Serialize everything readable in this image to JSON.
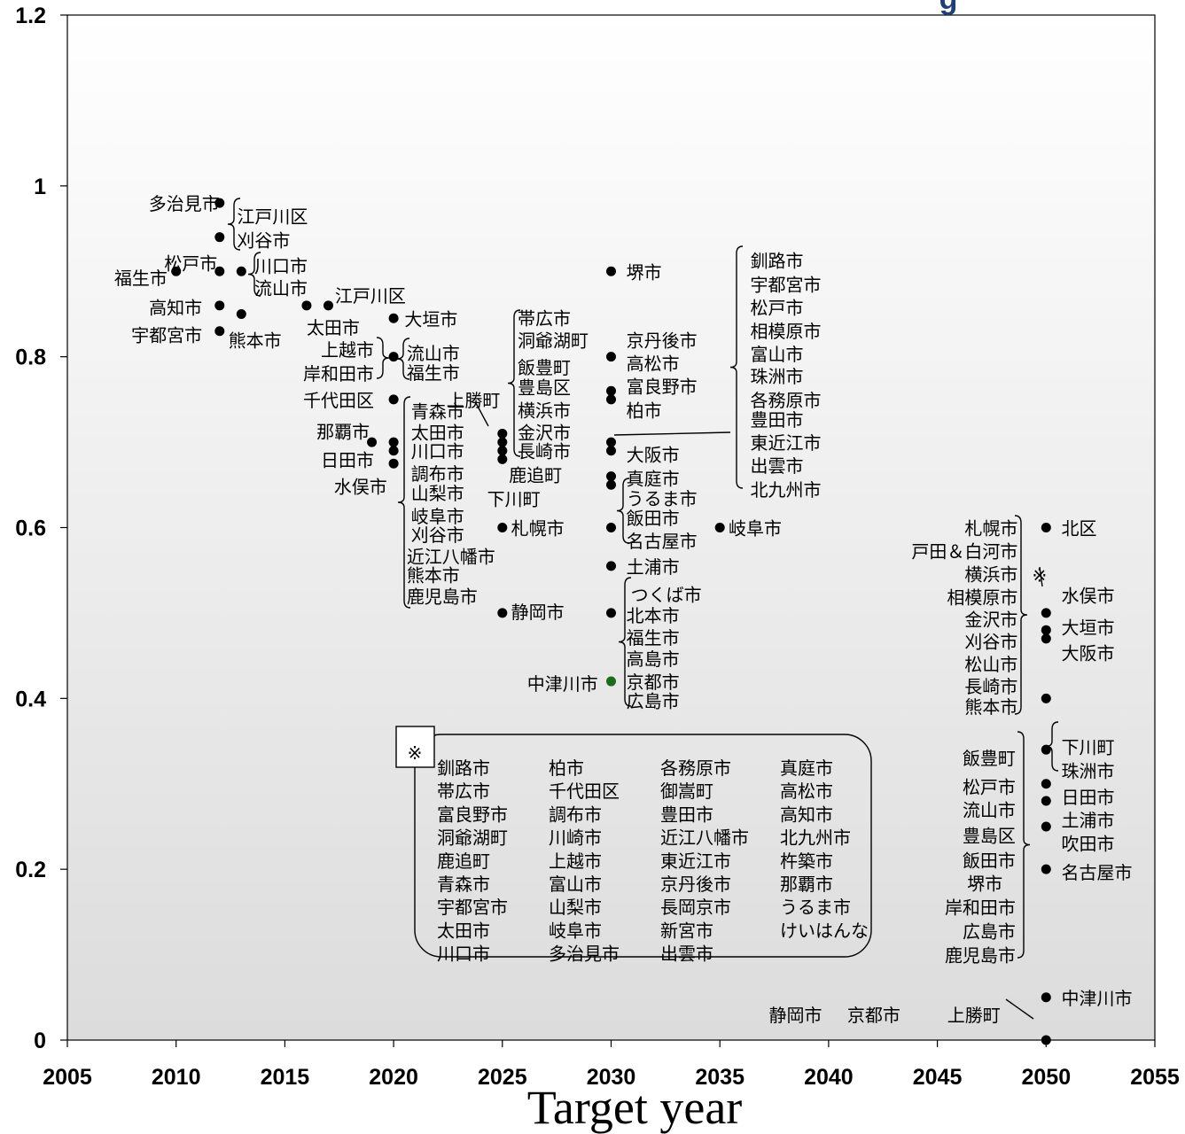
{
  "chart_data": {
    "type": "scatter",
    "title": "g",
    "xlabel": "Target year",
    "ylabel": "",
    "xlim": [
      2005,
      2055
    ],
    "ylim": [
      0,
      1.2
    ],
    "x_ticks": [
      "2005",
      "2010",
      "2015",
      "2020",
      "2025",
      "2030",
      "2035",
      "2040",
      "2045",
      "2050",
      "2055"
    ],
    "y_ticks": [
      "0",
      "0.2",
      "0.4",
      "0.6",
      "0.8",
      "1",
      "1.2"
    ],
    "grid": false,
    "colors": {
      "point": "#000000",
      "highlight_point": "#1a6b1a",
      "background_top": "#ffffff",
      "background_bottom": "#dcdcdc"
    },
    "points": [
      {
        "x": 2012,
        "y": 0.98
      },
      {
        "x": 2012,
        "y": 0.94
      },
      {
        "x": 2010,
        "y": 0.9
      },
      {
        "x": 2012,
        "y": 0.9
      },
      {
        "x": 2013,
        "y": 0.9
      },
      {
        "x": 2012,
        "y": 0.86
      },
      {
        "x": 2013,
        "y": 0.85
      },
      {
        "x": 2012,
        "y": 0.83
      },
      {
        "x": 2016,
        "y": 0.86
      },
      {
        "x": 2017,
        "y": 0.86
      },
      {
        "x": 2020,
        "y": 0.845
      },
      {
        "x": 2020,
        "y": 0.8
      },
      {
        "x": 2020,
        "y": 0.75
      },
      {
        "x": 2019,
        "y": 0.7
      },
      {
        "x": 2020,
        "y": 0.7
      },
      {
        "x": 2020,
        "y": 0.69
      },
      {
        "x": 2020,
        "y": 0.675
      },
      {
        "x": 2025,
        "y": 0.71
      },
      {
        "x": 2025,
        "y": 0.7
      },
      {
        "x": 2025,
        "y": 0.69
      },
      {
        "x": 2025,
        "y": 0.68
      },
      {
        "x": 2025,
        "y": 0.6
      },
      {
        "x": 2025,
        "y": 0.5
      },
      {
        "x": 2030,
        "y": 0.9
      },
      {
        "x": 2030,
        "y": 0.8
      },
      {
        "x": 2030,
        "y": 0.76
      },
      {
        "x": 2030,
        "y": 0.75
      },
      {
        "x": 2030,
        "y": 0.7
      },
      {
        "x": 2030,
        "y": 0.69
      },
      {
        "x": 2030,
        "y": 0.66
      },
      {
        "x": 2030,
        "y": 0.65
      },
      {
        "x": 2030,
        "y": 0.6
      },
      {
        "x": 2030,
        "y": 0.555
      },
      {
        "x": 2030,
        "y": 0.5
      },
      {
        "x": 2030,
        "y": 0.42,
        "highlight": true
      },
      {
        "x": 2035,
        "y": 0.6
      },
      {
        "x": 2050,
        "y": 0.6
      },
      {
        "x": 2050,
        "y": 0.5
      },
      {
        "x": 2050,
        "y": 0.48
      },
      {
        "x": 2050,
        "y": 0.47
      },
      {
        "x": 2050,
        "y": 0.4
      },
      {
        "x": 2050,
        "y": 0.34
      },
      {
        "x": 2050,
        "y": 0.3
      },
      {
        "x": 2050,
        "y": 0.28
      },
      {
        "x": 2050,
        "y": 0.25
      },
      {
        "x": 2050,
        "y": 0.2
      },
      {
        "x": 2050,
        "y": 0.05
      },
      {
        "x": 2050,
        "y": 0.0
      }
    ],
    "annotations": [
      {
        "text": "多治見市",
        "x": 2012,
        "y": 0.98,
        "anchor": "end"
      },
      {
        "text": "江戸川区",
        "x": 2012.8,
        "y": 0.965,
        "anchor": "start"
      },
      {
        "text": "刈谷市",
        "x": 2012.8,
        "y": 0.937,
        "anchor": "start"
      },
      {
        "text": "松戸市",
        "x": 2011.9,
        "y": 0.91,
        "anchor": "end"
      },
      {
        "text": "福生市",
        "x": 2009.6,
        "y": 0.893,
        "anchor": "end"
      },
      {
        "text": "川口市",
        "x": 2013.6,
        "y": 0.907,
        "anchor": "start"
      },
      {
        "text": "流山市",
        "x": 2013.6,
        "y": 0.881,
        "anchor": "start"
      },
      {
        "text": "高知市",
        "x": 2011.2,
        "y": 0.858,
        "anchor": "end"
      },
      {
        "text": "江戸川区",
        "x": 2017.3,
        "y": 0.872,
        "anchor": "start"
      },
      {
        "text": "宇都宮市",
        "x": 2011.2,
        "y": 0.826,
        "anchor": "end"
      },
      {
        "text": "熊本市",
        "x": 2012.4,
        "y": 0.82,
        "anchor": "start"
      },
      {
        "text": "太田市",
        "x": 2016.0,
        "y": 0.835,
        "anchor": "start"
      },
      {
        "text": "大垣市",
        "x": 2020.5,
        "y": 0.845,
        "anchor": "start"
      },
      {
        "text": "上越市",
        "x": 2019.1,
        "y": 0.809,
        "anchor": "end"
      },
      {
        "text": "岸和田市",
        "x": 2019.1,
        "y": 0.781,
        "anchor": "end"
      },
      {
        "text": "流山市",
        "x": 2020.6,
        "y": 0.805,
        "anchor": "start"
      },
      {
        "text": "福生市",
        "x": 2020.6,
        "y": 0.782,
        "anchor": "start"
      },
      {
        "text": "千代田区",
        "x": 2019.1,
        "y": 0.75,
        "anchor": "end"
      },
      {
        "text": "上勝町",
        "x": 2024.9,
        "y": 0.75,
        "anchor": "end"
      },
      {
        "text": "那覇市",
        "x": 2018.9,
        "y": 0.713,
        "anchor": "end"
      },
      {
        "text": "日田市",
        "x": 2019.1,
        "y": 0.68,
        "anchor": "end"
      },
      {
        "text": "水俣市",
        "x": 2019.7,
        "y": 0.649,
        "anchor": "end"
      },
      {
        "text": "青森市",
        "x": 2020.8,
        "y": 0.737,
        "anchor": "start"
      },
      {
        "text": "太田市",
        "x": 2020.8,
        "y": 0.712,
        "anchor": "start"
      },
      {
        "text": "川口市",
        "x": 2020.8,
        "y": 0.69,
        "anchor": "start"
      },
      {
        "text": "調布市",
        "x": 2020.8,
        "y": 0.664,
        "anchor": "start"
      },
      {
        "text": "山梨市",
        "x": 2020.8,
        "y": 0.641,
        "anchor": "start"
      },
      {
        "text": "岐阜市",
        "x": 2020.8,
        "y": 0.614,
        "anchor": "start"
      },
      {
        "text": "刈谷市",
        "x": 2020.8,
        "y": 0.592,
        "anchor": "start"
      },
      {
        "text": "近江八幡市",
        "x": 2020.6,
        "y": 0.567,
        "anchor": "start"
      },
      {
        "text": "熊本市",
        "x": 2020.6,
        "y": 0.545,
        "anchor": "start"
      },
      {
        "text": "鹿児島市",
        "x": 2020.6,
        "y": 0.52,
        "anchor": "start"
      },
      {
        "text": "帯広市",
        "x": 2025.7,
        "y": 0.846,
        "anchor": "start"
      },
      {
        "text": "洞爺湖町",
        "x": 2025.7,
        "y": 0.82,
        "anchor": "start"
      },
      {
        "text": "飯豊町",
        "x": 2025.7,
        "y": 0.788,
        "anchor": "start"
      },
      {
        "text": "豊島区",
        "x": 2025.7,
        "y": 0.765,
        "anchor": "start"
      },
      {
        "text": "横浜市",
        "x": 2025.7,
        "y": 0.738,
        "anchor": "start"
      },
      {
        "text": "金沢市",
        "x": 2025.7,
        "y": 0.712,
        "anchor": "start"
      },
      {
        "text": "長崎市",
        "x": 2025.7,
        "y": 0.69,
        "anchor": "start"
      },
      {
        "text": "鹿追町",
        "x": 2025.3,
        "y": 0.662,
        "anchor": "start"
      },
      {
        "text": "下川町",
        "x": 2024.3,
        "y": 0.634,
        "anchor": "start"
      },
      {
        "text": "札幌市",
        "x": 2025.4,
        "y": 0.6,
        "anchor": "start"
      },
      {
        "text": "静岡市",
        "x": 2025.4,
        "y": 0.502,
        "anchor": "start"
      },
      {
        "text": "堺市",
        "x": 2030.7,
        "y": 0.9,
        "anchor": "start"
      },
      {
        "text": "京丹後市",
        "x": 2030.7,
        "y": 0.82,
        "anchor": "start"
      },
      {
        "text": "高松市",
        "x": 2030.7,
        "y": 0.793,
        "anchor": "start"
      },
      {
        "text": "富良野市",
        "x": 2030.7,
        "y": 0.766,
        "anchor": "start"
      },
      {
        "text": "柏市",
        "x": 2030.7,
        "y": 0.738,
        "anchor": "start"
      },
      {
        "text": "大阪市",
        "x": 2030.7,
        "y": 0.686,
        "anchor": "start"
      },
      {
        "text": "真庭市",
        "x": 2030.7,
        "y": 0.658,
        "anchor": "start"
      },
      {
        "text": "うるま市",
        "x": 2030.7,
        "y": 0.635,
        "anchor": "start"
      },
      {
        "text": "飯田市",
        "x": 2030.7,
        "y": 0.612,
        "anchor": "start"
      },
      {
        "text": "名古屋市",
        "x": 2030.7,
        "y": 0.585,
        "anchor": "start"
      },
      {
        "text": "岐阜市",
        "x": 2035.4,
        "y": 0.6,
        "anchor": "start"
      },
      {
        "text": "土浦市",
        "x": 2030.7,
        "y": 0.555,
        "anchor": "start"
      },
      {
        "text": "つくば市",
        "x": 2030.9,
        "y": 0.522,
        "anchor": "start"
      },
      {
        "text": "北本市",
        "x": 2030.7,
        "y": 0.498,
        "anchor": "start"
      },
      {
        "text": "福生市",
        "x": 2030.7,
        "y": 0.472,
        "anchor": "start"
      },
      {
        "text": "高島市",
        "x": 2030.7,
        "y": 0.447,
        "anchor": "start"
      },
      {
        "text": "京都市",
        "x": 2030.7,
        "y": 0.42,
        "anchor": "start"
      },
      {
        "text": "広島市",
        "x": 2030.7,
        "y": 0.398,
        "anchor": "start"
      },
      {
        "text": "中津川市",
        "x": 2029.4,
        "y": 0.418,
        "anchor": "end"
      },
      {
        "text": "釧路市",
        "x": 2036.4,
        "y": 0.913,
        "anchor": "start"
      },
      {
        "text": "宇都宮市",
        "x": 2036.4,
        "y": 0.885,
        "anchor": "start"
      },
      {
        "text": "松戸市",
        "x": 2036.4,
        "y": 0.858,
        "anchor": "start"
      },
      {
        "text": "相模原市",
        "x": 2036.4,
        "y": 0.831,
        "anchor": "start"
      },
      {
        "text": "富山市",
        "x": 2036.4,
        "y": 0.804,
        "anchor": "start"
      },
      {
        "text": "珠洲市",
        "x": 2036.4,
        "y": 0.778,
        "anchor": "start"
      },
      {
        "text": "各務原市",
        "x": 2036.4,
        "y": 0.75,
        "anchor": "start"
      },
      {
        "text": "豊田市",
        "x": 2036.4,
        "y": 0.727,
        "anchor": "start"
      },
      {
        "text": "東近江市",
        "x": 2036.4,
        "y": 0.7,
        "anchor": "start"
      },
      {
        "text": "出雲市",
        "x": 2036.4,
        "y": 0.673,
        "anchor": "start"
      },
      {
        "text": "北九州市",
        "x": 2036.4,
        "y": 0.645,
        "anchor": "start"
      },
      {
        "text": "札幌市",
        "x": 2048.7,
        "y": 0.6,
        "anchor": "end"
      },
      {
        "text": "戸田＆白河市",
        "x": 2048.7,
        "y": 0.573,
        "anchor": "end"
      },
      {
        "text": "横浜市",
        "x": 2048.7,
        "y": 0.546,
        "anchor": "end"
      },
      {
        "text": "相模原市",
        "x": 2048.7,
        "y": 0.519,
        "anchor": "end"
      },
      {
        "text": "金沢市",
        "x": 2048.7,
        "y": 0.493,
        "anchor": "end"
      },
      {
        "text": "刈谷市",
        "x": 2048.7,
        "y": 0.467,
        "anchor": "end"
      },
      {
        "text": "松山市",
        "x": 2048.7,
        "y": 0.441,
        "anchor": "end"
      },
      {
        "text": "長崎市",
        "x": 2048.7,
        "y": 0.415,
        "anchor": "end"
      },
      {
        "text": "熊本市",
        "x": 2048.7,
        "y": 0.391,
        "anchor": "end"
      },
      {
        "text": "北区",
        "x": 2050.7,
        "y": 0.6,
        "anchor": "start"
      },
      {
        "text": "※",
        "x": 2049.7,
        "y": 0.545,
        "anchor": "middle"
      },
      {
        "text": "水俣市",
        "x": 2050.7,
        "y": 0.521,
        "anchor": "start"
      },
      {
        "text": "大垣市",
        "x": 2050.7,
        "y": 0.484,
        "anchor": "start"
      },
      {
        "text": "大阪市",
        "x": 2050.7,
        "y": 0.454,
        "anchor": "start"
      },
      {
        "text": "飯豊町",
        "x": 2048.6,
        "y": 0.331,
        "anchor": "end"
      },
      {
        "text": "松戸市",
        "x": 2048.6,
        "y": 0.297,
        "anchor": "end"
      },
      {
        "text": "流山市",
        "x": 2048.6,
        "y": 0.27,
        "anchor": "end"
      },
      {
        "text": "豊島区",
        "x": 2048.6,
        "y": 0.24,
        "anchor": "end"
      },
      {
        "text": "飯田市",
        "x": 2048.6,
        "y": 0.211,
        "anchor": "end"
      },
      {
        "text": "堺市",
        "x": 2048.0,
        "y": 0.184,
        "anchor": "end"
      },
      {
        "text": "岸和田市",
        "x": 2048.6,
        "y": 0.156,
        "anchor": "end"
      },
      {
        "text": "広島市",
        "x": 2048.6,
        "y": 0.128,
        "anchor": "end"
      },
      {
        "text": "鹿児島市",
        "x": 2048.6,
        "y": 0.1,
        "anchor": "end"
      },
      {
        "text": "下川町",
        "x": 2050.7,
        "y": 0.344,
        "anchor": "start"
      },
      {
        "text": "珠洲市",
        "x": 2050.7,
        "y": 0.316,
        "anchor": "start"
      },
      {
        "text": "日田市",
        "x": 2050.7,
        "y": 0.285,
        "anchor": "start"
      },
      {
        "text": "土浦市",
        "x": 2050.7,
        "y": 0.258,
        "anchor": "start"
      },
      {
        "text": "吹田市",
        "x": 2050.7,
        "y": 0.231,
        "anchor": "start"
      },
      {
        "text": "名古屋市",
        "x": 2050.7,
        "y": 0.197,
        "anchor": "start"
      },
      {
        "text": "中津川市",
        "x": 2050.7,
        "y": 0.05,
        "anchor": "start"
      },
      {
        "text": "静岡市",
        "x": 2039.7,
        "y": 0.03,
        "anchor": "end"
      },
      {
        "text": "京都市",
        "x": 2043.3,
        "y": 0.03,
        "anchor": "end"
      },
      {
        "text": "上勝町",
        "x": 2047.9,
        "y": 0.03,
        "anchor": "end"
      }
    ],
    "box_marker": "※",
    "box_columns": [
      [
        "釧路市",
        "帯広市",
        "富良野市",
        "洞爺湖町",
        "鹿追町",
        "青森市",
        "宇都宮市",
        "太田市",
        "川口市"
      ],
      [
        "柏市",
        "千代田区",
        "調布市",
        "川崎市",
        "上越市",
        "富山市",
        "山梨市",
        "岐阜市",
        "多治見市"
      ],
      [
        "各務原市",
        "御嵩町",
        "豊田市",
        "近江八幡市",
        "東近江市",
        "京丹後市",
        "長岡京市",
        "新宮市",
        "出雲市"
      ],
      [
        "真庭市",
        "高松市",
        "高知市",
        "北九州市",
        "杵築市",
        "那覇市",
        "うるま市",
        "けいはんな"
      ]
    ]
  }
}
